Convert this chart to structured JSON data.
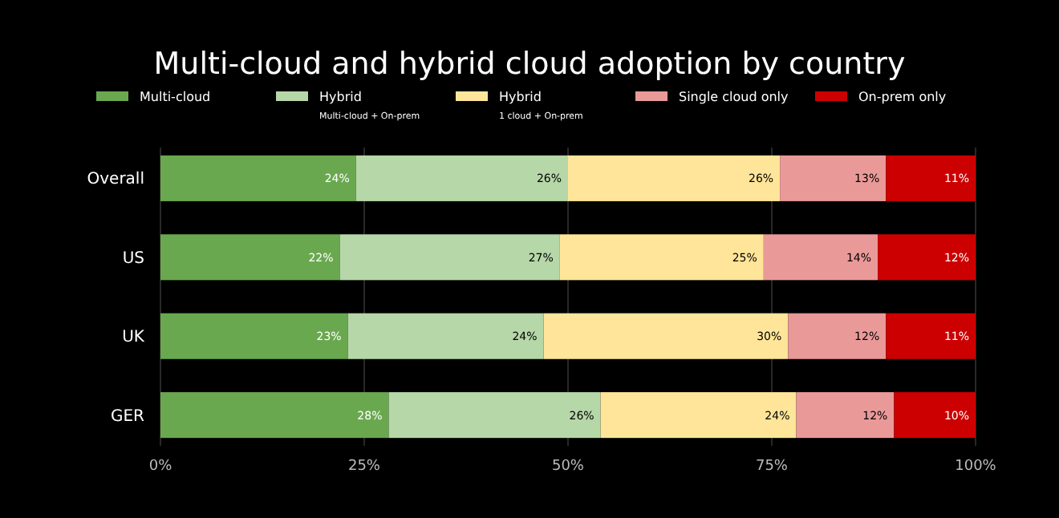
{
  "chart_data": {
    "type": "bar",
    "orientation": "horizontal",
    "stacked": true,
    "title": "Multi-cloud and hybrid cloud adoption by country",
    "categories": [
      "Overall",
      "US",
      "UK",
      "GER"
    ],
    "series": [
      {
        "name": "Multi-cloud",
        "color": "#6aa84f",
        "values": [
          24,
          22,
          23,
          28
        ],
        "value_labels": [
          "24%",
          "22%",
          "23%",
          "28%"
        ]
      },
      {
        "name": "Hybrid\nMulti-cloud + On-prem",
        "color": "#b6d7a8",
        "values": [
          26,
          27,
          24,
          26
        ],
        "value_labels": [
          "26%",
          "27%",
          "24%",
          "26%"
        ]
      },
      {
        "name": "Hybrid\n1 cloud + On-prem",
        "color": "#ffe599",
        "values": [
          26,
          25,
          30,
          24
        ],
        "value_labels": [
          "26%",
          "25%",
          "30%",
          "24%"
        ]
      },
      {
        "name": "Single cloud only",
        "color": "#ea9999",
        "values": [
          13,
          14,
          12,
          12
        ],
        "value_labels": [
          "13%",
          "14%",
          "12%",
          "12%"
        ]
      },
      {
        "name": "On-prem only",
        "color": "#cc0000",
        "values": [
          11,
          12,
          11,
          10
        ],
        "value_labels": [
          "11%",
          "12%",
          "11%",
          "10%"
        ]
      }
    ],
    "xlim": [
      0,
      100
    ],
    "xticks": [
      {
        "value": 0,
        "label": "0%"
      },
      {
        "value": 25,
        "label": "25%"
      },
      {
        "value": 50,
        "label": "50%"
      },
      {
        "value": 75,
        "label": "75%"
      },
      {
        "value": 100,
        "label": "100%"
      }
    ],
    "grid": "x",
    "legend": "top"
  }
}
